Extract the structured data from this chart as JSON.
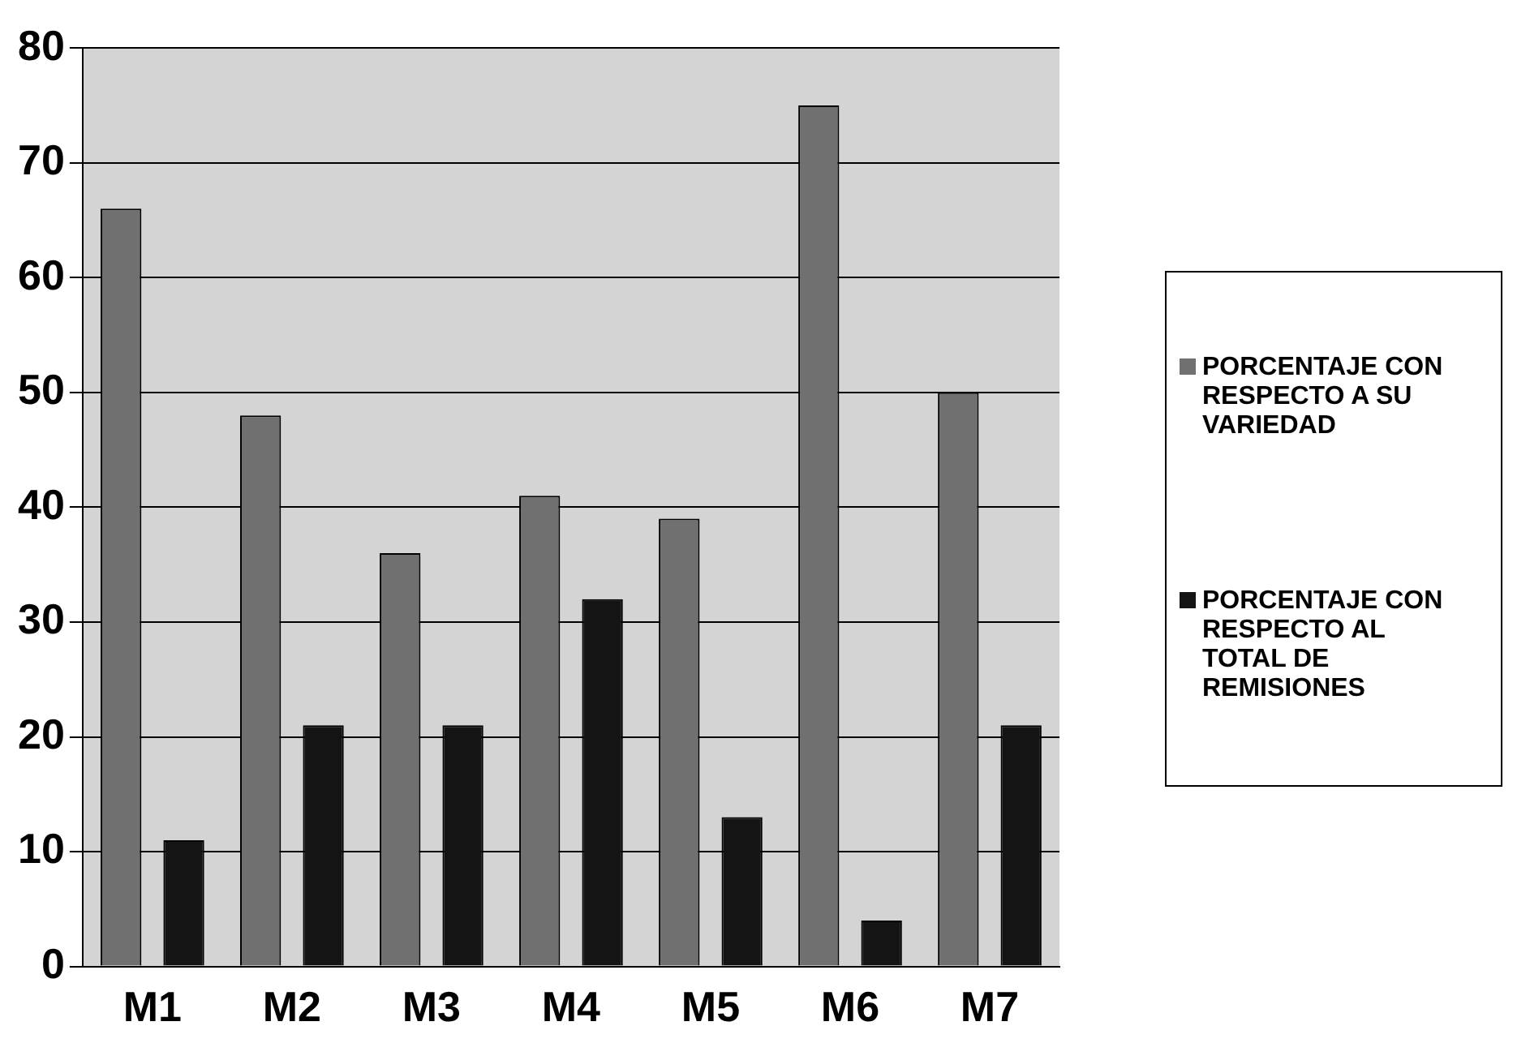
{
  "chart_data": {
    "type": "bar",
    "categories": [
      "M1",
      "M2",
      "M3",
      "M4",
      "M5",
      "M6",
      "M7"
    ],
    "series": [
      {
        "name": "PORCENTAJE CON RESPECTO A SU VARIEDAD",
        "color": "#707070",
        "values": [
          66,
          48,
          36,
          41,
          39,
          75,
          50
        ]
      },
      {
        "name": "PORCENTAJE CON RESPECTO AL TOTAL DE REMISIONES",
        "color": "#141414",
        "values": [
          11,
          21,
          21,
          32,
          13,
          4,
          21
        ]
      }
    ],
    "ylim": [
      0,
      80
    ],
    "yticks": [
      0,
      10,
      20,
      30,
      40,
      50,
      60,
      70,
      80
    ],
    "grid": "y",
    "legend": "right"
  }
}
